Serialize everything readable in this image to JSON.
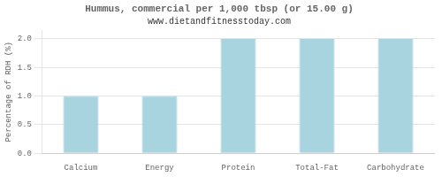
{
  "chart_data": {
    "type": "bar",
    "title": "Hummus, commercial per 1,000 tbsp (or 15.00 g)",
    "subtitle": "www.dietandfitnesstoday.com",
    "categories": [
      "Calcium",
      "Energy",
      "Protein",
      "Total-Fat",
      "Carbohydrate"
    ],
    "values": [
      1.0,
      1.0,
      2.0,
      2.0,
      2.0
    ],
    "color": "#a8d4e0",
    "ylabel": "Percentage of RDH (%)",
    "ylim": [
      0,
      2.15
    ],
    "yticks": [
      {
        "value": 0.0,
        "label": "0.0"
      },
      {
        "value": 0.5,
        "label": "0.5"
      },
      {
        "value": 1.0,
        "label": "1.0"
      },
      {
        "value": 1.5,
        "label": "1.5"
      },
      {
        "value": 2.0,
        "label": "2.0"
      }
    ],
    "grid": true
  }
}
